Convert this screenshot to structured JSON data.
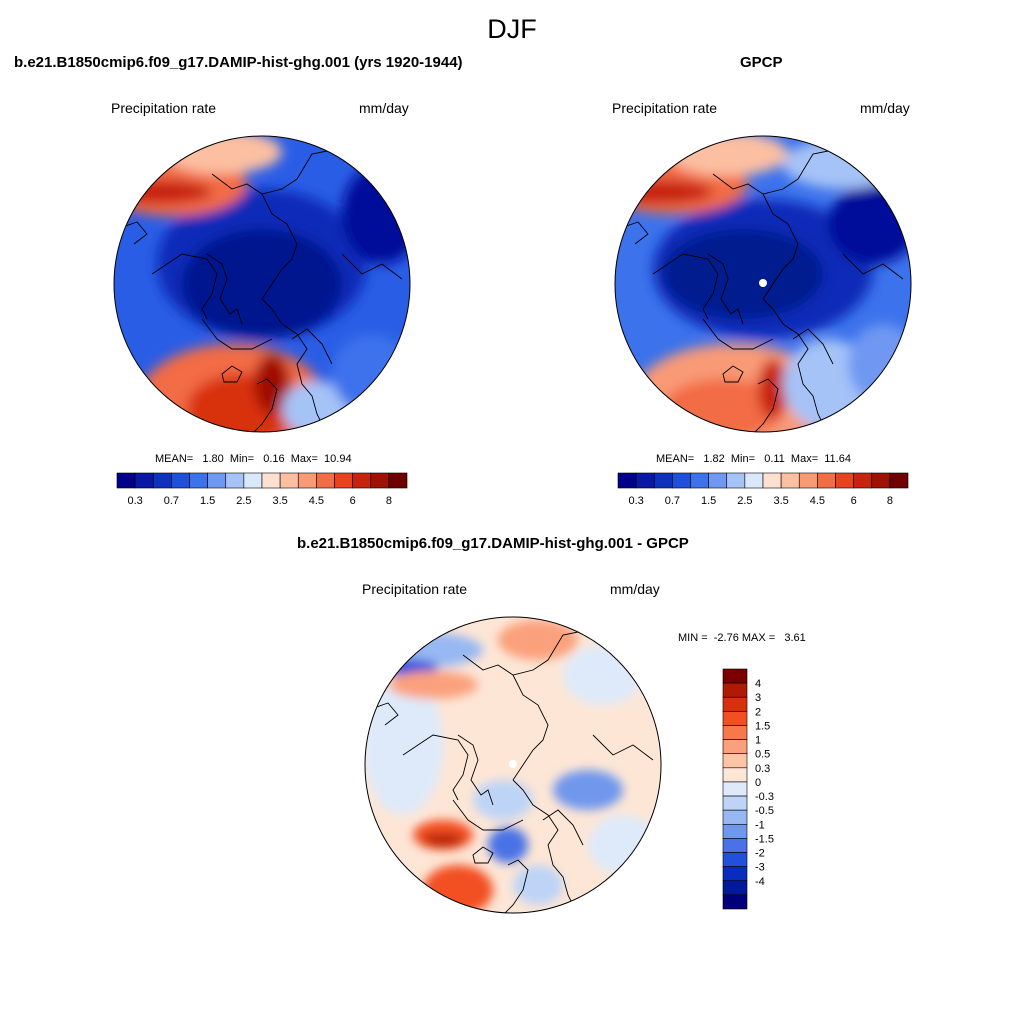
{
  "figure": {
    "title": "DJF"
  },
  "panel1": {
    "title": "b.e21.B1850cmip6.f09_g17.DAMIP-hist-ghg.001 (yrs 1920-1944)",
    "left_label": "Precipitation rate",
    "right_label": "mm/day",
    "stats": "MEAN=   1.80  Min=   0.16  Max=  10.94"
  },
  "panel2": {
    "title": "GPCP",
    "left_label": "Precipitation rate",
    "right_label": "mm/day",
    "stats": "MEAN=   1.82  Min=   0.11  Max=  11.64"
  },
  "panel3": {
    "title": "b.e21.B1850cmip6.f09_g17.DAMIP-hist-ghg.001 - GPCP",
    "left_label": "Precipitation rate",
    "right_label": "mm/day",
    "stats": "MIN =  -2.76 MAX =   3.61"
  },
  "chart_data": [
    {
      "type": "heatmap",
      "projection": "north-polar-stereographic",
      "title": "b.e21.B1850cmip6.f09_g17.DAMIP-hist-ghg.001 (yrs 1920-1944)",
      "variable": "Precipitation rate",
      "units": "mm/day",
      "mean": 1.8,
      "min": 0.16,
      "max": 10.94,
      "colorbar": {
        "orientation": "horizontal",
        "levels": [
          0.3,
          0.5,
          0.7,
          1,
          1.5,
          2,
          2.5,
          3,
          3.5,
          4,
          4.5,
          5,
          6,
          7,
          8
        ],
        "tick_labels": [
          "0.3",
          "0.7",
          "1.5",
          "2.5",
          "3.5",
          "4.5",
          "6",
          "8"
        ],
        "colors": [
          "#00008b",
          "#0a18a8",
          "#0f31c0",
          "#1f4fdd",
          "#3c72ec",
          "#6f98f2",
          "#a6c3f7",
          "#d9e8fb",
          "#fde0cf",
          "#fcbfa2",
          "#f99a76",
          "#f26c44",
          "#e8421f",
          "#c8230e",
          "#a01003",
          "#6e0000"
        ]
      }
    },
    {
      "type": "heatmap",
      "projection": "north-polar-stereographic",
      "title": "GPCP",
      "variable": "Precipitation rate",
      "units": "mm/day",
      "mean": 1.82,
      "min": 0.11,
      "max": 11.64,
      "colorbar": {
        "orientation": "horizontal",
        "levels": [
          0.3,
          0.5,
          0.7,
          1,
          1.5,
          2,
          2.5,
          3,
          3.5,
          4,
          4.5,
          5,
          6,
          7,
          8
        ],
        "tick_labels": [
          "0.3",
          "0.7",
          "1.5",
          "2.5",
          "3.5",
          "4.5",
          "6",
          "8"
        ],
        "colors": [
          "#00008b",
          "#0a18a8",
          "#0f31c0",
          "#1f4fdd",
          "#3c72ec",
          "#6f98f2",
          "#a6c3f7",
          "#d9e8fb",
          "#fde0cf",
          "#fcbfa2",
          "#f99a76",
          "#f26c44",
          "#e8421f",
          "#c8230e",
          "#a01003",
          "#6e0000"
        ]
      }
    },
    {
      "type": "heatmap",
      "projection": "north-polar-stereographic",
      "title": "b.e21.B1850cmip6.f09_g17.DAMIP-hist-ghg.001 - GPCP",
      "variable": "Precipitation rate",
      "units": "mm/day",
      "min": -2.76,
      "max": 3.61,
      "colorbar": {
        "orientation": "vertical",
        "tick_labels": [
          "4",
          "3",
          "2",
          "1.5",
          "1",
          "0.5",
          "0.3",
          "0",
          "-0.3",
          "-0.5",
          "-1",
          "-1.5",
          "-2",
          "-3",
          "-4"
        ],
        "colors": [
          "#7a0000",
          "#b01a05",
          "#d8300c",
          "#f25022",
          "#f7784a",
          "#fba07c",
          "#fdc4a8",
          "#fde6d6",
          "#deeafa",
          "#bdd4f6",
          "#97b8f2",
          "#6f97ec",
          "#4872e6",
          "#2150dc",
          "#0a2cba",
          "#001a9a",
          "#00007a"
        ]
      }
    }
  ]
}
